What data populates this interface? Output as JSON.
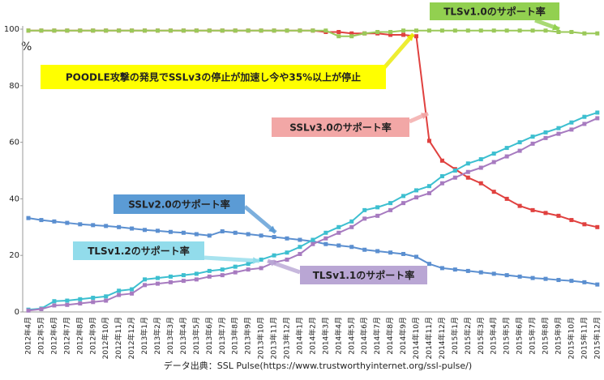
{
  "chart_data": {
    "type": "line",
    "y_label": "%",
    "source": "データ出典：SSL Pulse(https://www.trustworthyinternet.org/ssl-pulse/)",
    "annotations": [
      "POODLE攻撃の発見でSSLv3の停止が加速し今や35%以上が停止"
    ],
    "categories": [
      "2012年4月",
      "2012年5月",
      "2012年6月",
      "2012年7月",
      "2012年8月",
      "2012年9月",
      "2012年10月",
      "2012年11月",
      "2012年12月",
      "2013年1月",
      "2013年2月",
      "2013年3月",
      "2013年4月",
      "2013年5月",
      "2013年6月",
      "2013年7月",
      "2013年8月",
      "2013年9月",
      "2013年10月",
      "2013年11月",
      "2013年12月",
      "2014年1月",
      "2014年2月",
      "2014年3月",
      "2014年4月",
      "2014年5月",
      "2014年6月",
      "2014年7月",
      "2014年8月",
      "2014年9月",
      "2014年10月",
      "2014年11月",
      "2014年12月",
      "2015年1月",
      "2015年2月",
      "2015年3月",
      "2015年4月",
      "2015年5月",
      "2015年6月",
      "2015年7月",
      "2015年8月",
      "2015年9月",
      "2015年10月",
      "2015年11月",
      "2015年12月"
    ],
    "series": [
      {
        "name": "SSLv3.0のサポート率",
        "color": "#e0413f",
        "values": [
          99.5,
          99.5,
          99.5,
          99.5,
          99.5,
          99.5,
          99.5,
          99.5,
          99.5,
          99.5,
          99.5,
          99.5,
          99.5,
          99.5,
          99.5,
          99.5,
          99.5,
          99.5,
          99.5,
          99.5,
          99.5,
          99.5,
          99.5,
          99,
          99,
          98.5,
          98.5,
          98.5,
          98,
          98,
          97.5,
          60.5,
          53.5,
          50.5,
          47.5,
          45.5,
          42.5,
          40,
          37.5,
          36,
          35,
          34,
          32.5,
          31,
          30
        ]
      },
      {
        "name": "TLSv1.0のサポート率",
        "color": "#9bc95a",
        "values": [
          99.5,
          99.5,
          99.5,
          99.5,
          99.5,
          99.5,
          99.5,
          99.5,
          99.5,
          99.5,
          99.5,
          99.5,
          99.5,
          99.5,
          99.5,
          99.5,
          99.5,
          99.5,
          99.5,
          99.5,
          99.5,
          99.5,
          99.5,
          99.5,
          97.5,
          97.5,
          98.5,
          99,
          99,
          99.5,
          99.5,
          99.5,
          99.5,
          99.5,
          99.5,
          99.5,
          99.5,
          99.5,
          99.5,
          99.5,
          99.5,
          99,
          99,
          98.5,
          98.5
        ]
      },
      {
        "name": "SSLv2.0のサポート率",
        "color": "#5b8fd0",
        "values": [
          33.2,
          32.5,
          32,
          31.5,
          31,
          30.7,
          30.4,
          30,
          29.5,
          29,
          28.7,
          28.3,
          28,
          27.5,
          27,
          28.5,
          28,
          27.5,
          27,
          26.5,
          26,
          25.5,
          25,
          24,
          23.5,
          23,
          22,
          21.5,
          21,
          20.5,
          19.5,
          17,
          15.5,
          15,
          14.5,
          14,
          13.5,
          13,
          12.5,
          12,
          11.7,
          11.3,
          11,
          10.5,
          9.7
        ]
      },
      {
        "name": "TLSv1.2のサポート率",
        "color": "#3dbfd0",
        "values": [
          0.8,
          1.2,
          3.8,
          4,
          4.5,
          5,
          5.5,
          7.5,
          8,
          11.5,
          12,
          12.5,
          13,
          13.5,
          14.5,
          15,
          16,
          17,
          18.5,
          20,
          21,
          23,
          25.5,
          28,
          30,
          32,
          36,
          37,
          38.5,
          41,
          43,
          44.5,
          48,
          50,
          52.5,
          54,
          56,
          58,
          60,
          62,
          63.5,
          65,
          67,
          69,
          70.5
        ]
      },
      {
        "name": "TLSv1.1のサポート率",
        "color": "#a77bc0",
        "values": [
          0.5,
          1,
          2.3,
          2.5,
          3,
          3.5,
          4,
          6,
          6.5,
          9.5,
          10,
          10.5,
          11,
          11.5,
          12.5,
          13,
          14,
          15,
          15.5,
          17.5,
          18.5,
          20.5,
          24,
          26,
          28,
          30,
          33,
          34,
          36,
          38.5,
          40.5,
          42,
          45.5,
          47.5,
          49.5,
          51,
          53,
          55,
          57,
          59.5,
          61.5,
          63,
          64.5,
          66.5,
          68.5
        ]
      }
    ],
    "ylim": [
      0,
      100
    ],
    "yticks": [
      0,
      20,
      40,
      60,
      80,
      100
    ],
    "grid": false
  }
}
